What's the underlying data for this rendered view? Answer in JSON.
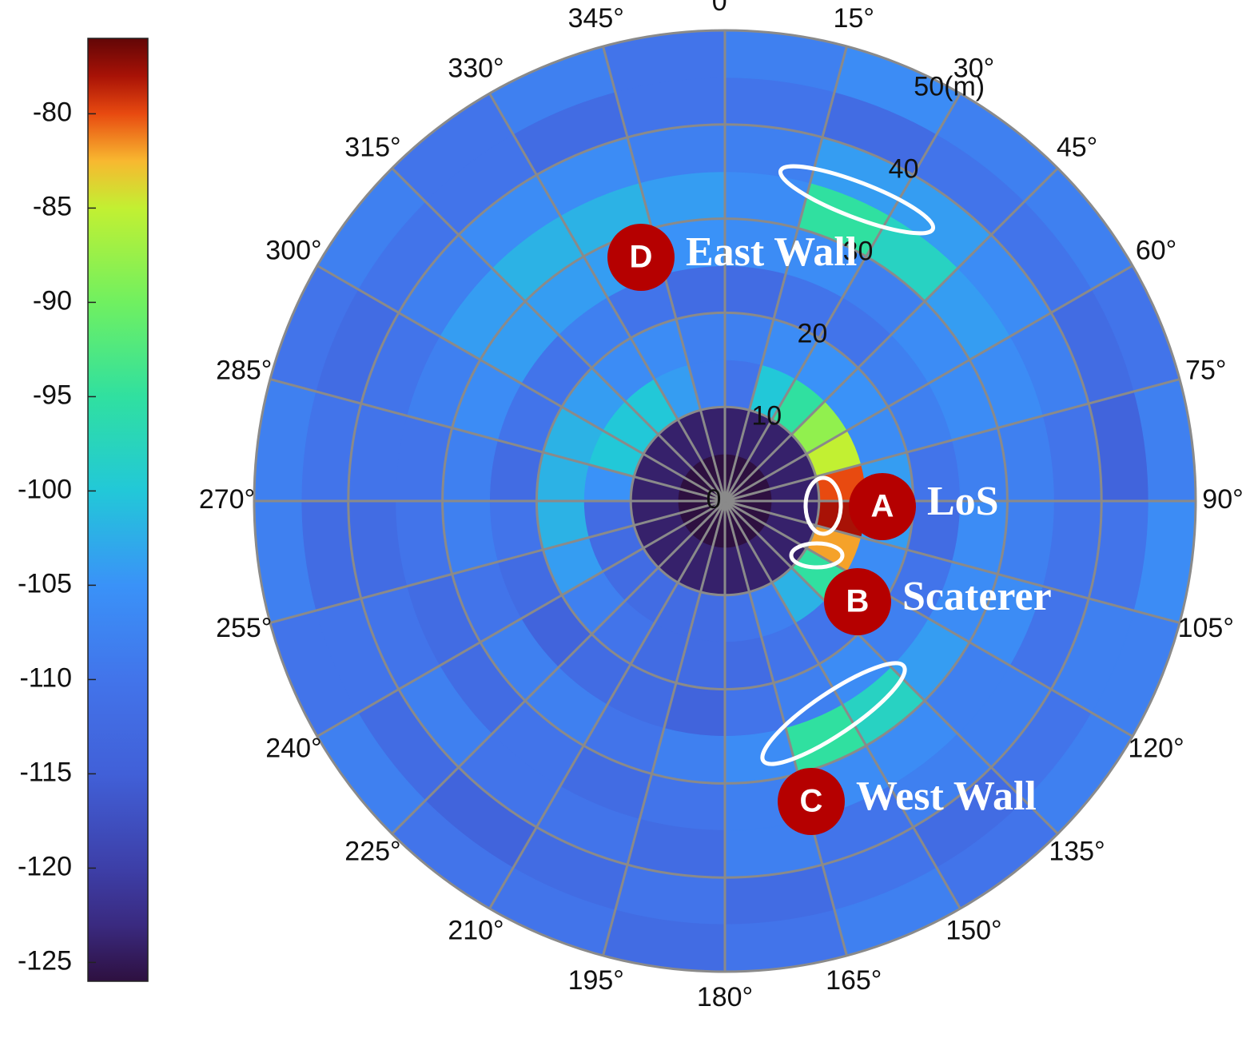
{
  "chart_data": {
    "type": "polar_heatmap",
    "colormap": "turbo",
    "rlim": [
      0,
      50
    ],
    "rticks": [
      0,
      10,
      20,
      30,
      40,
      {
        "value": 50,
        "label": "50(m)"
      }
    ],
    "thetaticks": [
      {
        "value": 0,
        "label": "0°"
      },
      {
        "value": 15,
        "label": "15°"
      },
      {
        "value": 30,
        "label": "30°"
      },
      {
        "value": 45,
        "label": "45°"
      },
      {
        "value": 60,
        "label": "60°"
      },
      {
        "value": 75,
        "label": "75°"
      },
      {
        "value": 90,
        "label": "90°"
      },
      {
        "value": 105,
        "label": "105°"
      },
      {
        "value": 120,
        "label": "120°"
      },
      {
        "value": 135,
        "label": "135°"
      },
      {
        "value": 150,
        "label": "150°"
      },
      {
        "value": 165,
        "label": "165°"
      },
      {
        "value": 180,
        "label": "180°"
      },
      {
        "value": 195,
        "label": "195°"
      },
      {
        "value": 210,
        "label": "210°"
      },
      {
        "value": 225,
        "label": "225°"
      },
      {
        "value": 240,
        "label": "240°"
      },
      {
        "value": 255,
        "label": "255°"
      },
      {
        "value": 270,
        "label": "270°"
      },
      {
        "value": 285,
        "label": "285°"
      },
      {
        "value": 300,
        "label": "300°"
      },
      {
        "value": 315,
        "label": "315°"
      },
      {
        "value": 330,
        "label": "330°"
      },
      {
        "value": 345,
        "label": "345°"
      }
    ],
    "grid": true,
    "r_edges": [
      0,
      5,
      10,
      15,
      20,
      25,
      30,
      35,
      40,
      45,
      50
    ],
    "theta_edges": [
      0,
      15,
      30,
      45,
      60,
      75,
      90,
      105,
      120,
      135,
      150,
      165,
      180,
      195,
      210,
      225,
      240,
      255,
      270,
      285,
      300,
      315,
      330,
      345,
      360
    ],
    "values": [
      [
        -126,
        -126,
        -126,
        -126,
        -126,
        -126,
        -126,
        -126,
        -126,
        -126,
        -126,
        -126,
        -126,
        -126,
        -126,
        -126,
        -126,
        -126,
        -126,
        -126,
        -126,
        -126,
        -126,
        -126
      ],
      [
        -124,
        -124,
        -124,
        -124,
        -124,
        -124,
        -124,
        -124,
        -124,
        -124,
        -124,
        -124,
        -124,
        -124,
        -124,
        -124,
        -124,
        -124,
        -124,
        -124,
        -124,
        -124,
        -124,
        -124
      ],
      [
        -110,
        -100,
        -95,
        -88,
        -85,
        -80,
        -78,
        -82,
        -95,
        -102,
        -108,
        -110,
        -112,
        -112,
        -112,
        -112,
        -112,
        -112,
        -105,
        -100,
        -100,
        -100,
        -104,
        -108
      ],
      [
        -108,
        -106,
        -105,
        -105,
        -106,
        -104,
        -104,
        -106,
        -108,
        -110,
        -110,
        -112,
        -112,
        -112,
        -110,
        -108,
        -104,
        -102,
        -102,
        -102,
        -104,
        -106,
        -106,
        -108
      ],
      [
        -112,
        -110,
        -110,
        -108,
        -108,
        -110,
        -112,
        -110,
        -108,
        -106,
        -108,
        -110,
        -114,
        -112,
        -112,
        -114,
        -112,
        -110,
        -112,
        -110,
        -110,
        -108,
        -110,
        -112
      ],
      [
        -106,
        -106,
        -108,
        -106,
        -106,
        -108,
        -106,
        -106,
        -104,
        -98,
        -95,
        -106,
        -108,
        -110,
        -108,
        -108,
        -110,
        -108,
        -108,
        -106,
        -104,
        -104,
        -104,
        -105
      ],
      [
        -106,
        -95,
        -98,
        -104,
        -106,
        -108,
        -108,
        -106,
        -108,
        -106,
        -106,
        -108,
        -110,
        -112,
        -110,
        -112,
        -112,
        -110,
        -110,
        -108,
        -104,
        -102,
        -102,
        -104
      ],
      [
        -108,
        -104,
        -104,
        -106,
        -108,
        -110,
        -110,
        -110,
        -108,
        -108,
        -110,
        -108,
        -112,
        -110,
        -110,
        -108,
        -110,
        -112,
        -110,
        -110,
        -108,
        -106,
        -106,
        -108
      ],
      [
        -110,
        -112,
        -110,
        -110,
        -112,
        -114,
        -110,
        -108,
        -110,
        -112,
        -110,
        -112,
        -110,
        -112,
        -114,
        -112,
        -110,
        -112,
        -110,
        -112,
        -110,
        -110,
        -112,
        -110
      ],
      [
        -108,
        -106,
        -108,
        -108,
        -110,
        -108,
        -106,
        -108,
        -108,
        -110,
        -108,
        -110,
        -112,
        -110,
        -110,
        -108,
        -110,
        -108,
        -108,
        -110,
        -108,
        -110,
        -108,
        -110
      ]
    ],
    "colorbar": {
      "lim": [
        -126,
        -76
      ],
      "ticks": [
        -80,
        -85,
        -90,
        -95,
        -100,
        -105,
        -110,
        -115,
        -120,
        -125
      ]
    },
    "annotations": [
      {
        "marker": "A",
        "text": "LoS"
      },
      {
        "marker": "B",
        "text": "Scaterer"
      },
      {
        "marker": "C",
        "text": "West Wall"
      },
      {
        "marker": "D",
        "text": "East Wall"
      }
    ]
  }
}
